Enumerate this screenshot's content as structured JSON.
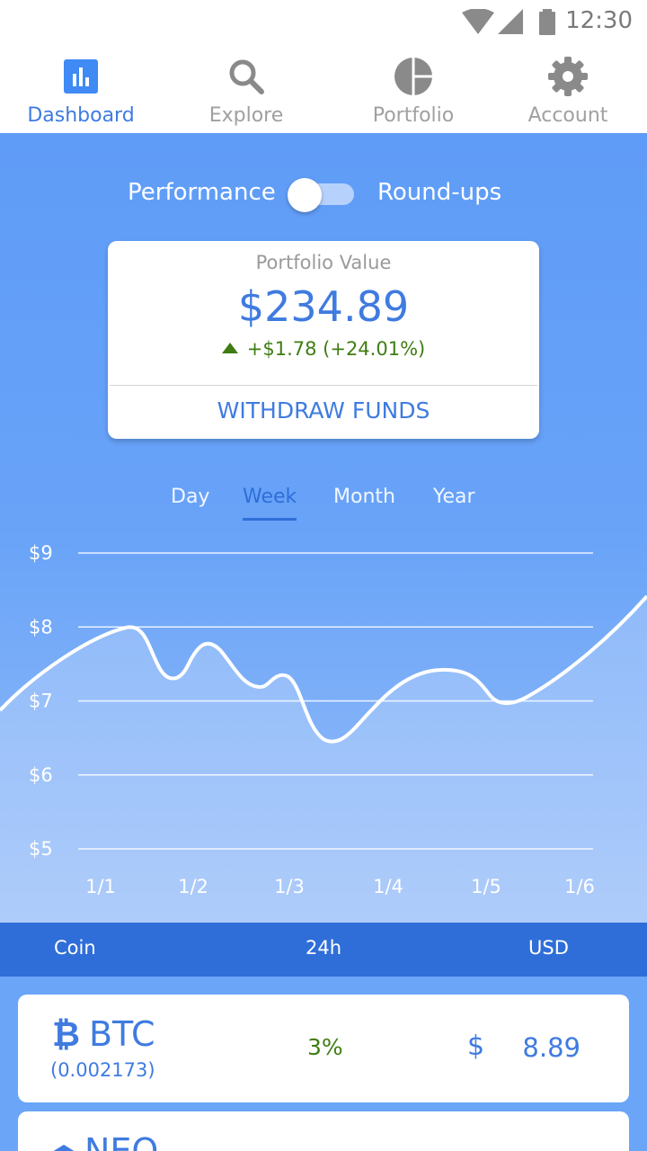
{
  "status_bar": {
    "time": "12:30"
  },
  "nav": {
    "items": [
      {
        "label": "Dashboard",
        "icon": "bar-chart-icon",
        "active": true
      },
      {
        "label": "Explore",
        "icon": "search-icon"
      },
      {
        "label": "Portfolio",
        "icon": "pie-chart-icon"
      },
      {
        "label": "Account",
        "icon": "gear-icon"
      }
    ]
  },
  "toggle": {
    "left_label": "Performance",
    "right_label": "Round-ups",
    "state": "off"
  },
  "portfolio": {
    "title": "Portfolio Value",
    "value": "$234.89",
    "change": "+$1.78 (+24.01%)",
    "button": "WITHDRAW FUNDS"
  },
  "ranges": {
    "items": [
      "Day",
      "Week",
      "Month",
      "Year"
    ],
    "selected": "Week"
  },
  "chart_data": {
    "type": "area",
    "x": [
      "1/1",
      "1/2",
      "1/3",
      "1/4",
      "1/5",
      "1/6"
    ],
    "y_ticks": [
      "$5",
      "$6",
      "$7",
      "$8",
      "$9"
    ],
    "ylim": [
      5,
      9
    ],
    "grid": true,
    "line_color": "#ffffff",
    "series": [
      {
        "points": [
          [
            "1/1",
            7.5
          ],
          [
            "1/1",
            8.0
          ],
          [
            "1/2",
            7.3
          ],
          [
            "1/2",
            7.8
          ],
          [
            "1/3",
            7.2
          ],
          [
            "1/3",
            7.3
          ],
          [
            "1/4",
            6.5
          ],
          [
            "1/4",
            7.3
          ],
          [
            "1/5",
            7.4
          ],
          [
            "1/5",
            7.0
          ],
          [
            "1/6",
            8.4
          ]
        ]
      }
    ]
  },
  "table": {
    "headers": {
      "coin": "Coin",
      "change": "24h",
      "value": "USD"
    },
    "rows": [
      {
        "symbol": "BTC",
        "icon": "bitcoin-icon",
        "amount": "(0.002173)",
        "change": "3%",
        "currency": "$",
        "value": "8.89"
      },
      {
        "symbol": "NEO",
        "icon": "neo-icon",
        "amount": "",
        "change": "",
        "currency": "",
        "value": ""
      }
    ]
  },
  "colors": {
    "accent": "#3f7be0",
    "positive": "#3f7d12",
    "header": "#2f6ed8"
  }
}
